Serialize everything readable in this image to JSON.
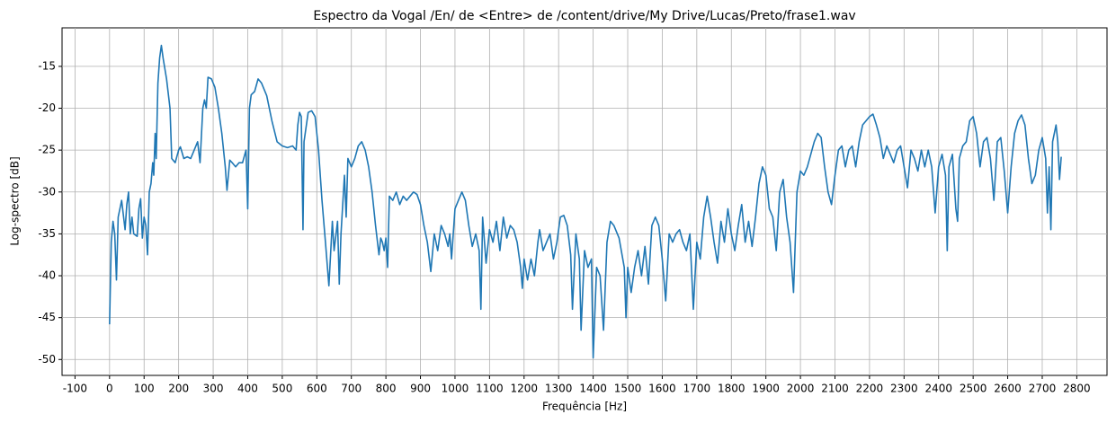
{
  "chart_data": {
    "type": "line",
    "title": "Espectro da Vogal /En/ de <Entre> de /content/drive/My Drive/Lucas/Preto/frase1.wav",
    "x_label": "Frequência [Hz]",
    "y_label": "Log-spectro [dB]",
    "color": "#1f77b4",
    "grid": true,
    "xlim": [
      -137.5,
      2887.5
    ],
    "ylim": [
      -51.9,
      -10.4
    ],
    "xticks": [
      -100,
      0,
      100,
      200,
      300,
      400,
      500,
      600,
      700,
      800,
      900,
      1000,
      1100,
      1200,
      1300,
      1400,
      1500,
      1600,
      1700,
      1800,
      1900,
      2000,
      2100,
      2200,
      2300,
      2400,
      2500,
      2600,
      2700,
      2800
    ],
    "yticks": [
      -50,
      -45,
      -40,
      -35,
      -30,
      -25,
      -20,
      -15
    ],
    "x": [
      0,
      5,
      10,
      15,
      20,
      25,
      35,
      45,
      50,
      55,
      60,
      65,
      70,
      80,
      85,
      90,
      95,
      100,
      105,
      110,
      115,
      120,
      125,
      128,
      132,
      135,
      140,
      145,
      150,
      155,
      165,
      175,
      180,
      190,
      200,
      205,
      215,
      225,
      235,
      245,
      255,
      262,
      270,
      275,
      280,
      285,
      295,
      305,
      315,
      325,
      335,
      340,
      348,
      355,
      365,
      375,
      385,
      395,
      400,
      405,
      410,
      420,
      430,
      440,
      455,
      470,
      485,
      500,
      515,
      530,
      540,
      545,
      550,
      555,
      560,
      563,
      575,
      585,
      595,
      605,
      615,
      625,
      635,
      645,
      650,
      660,
      665,
      670,
      680,
      685,
      690,
      700,
      710,
      720,
      730,
      740,
      750,
      760,
      770,
      780,
      785,
      790,
      795,
      800,
      805,
      810,
      820,
      830,
      840,
      850,
      860,
      870,
      880,
      890,
      900,
      910,
      920,
      930,
      940,
      950,
      960,
      970,
      980,
      985,
      990,
      1000,
      1010,
      1020,
      1030,
      1040,
      1050,
      1060,
      1070,
      1075,
      1080,
      1090,
      1100,
      1110,
      1120,
      1130,
      1140,
      1150,
      1160,
      1170,
      1180,
      1190,
      1195,
      1200,
      1210,
      1220,
      1230,
      1240,
      1245,
      1255,
      1265,
      1275,
      1285,
      1295,
      1305,
      1315,
      1325,
      1335,
      1340,
      1350,
      1360,
      1365,
      1375,
      1385,
      1395,
      1400,
      1410,
      1420,
      1430,
      1440,
      1450,
      1460,
      1475,
      1490,
      1495,
      1500,
      1510,
      1520,
      1530,
      1540,
      1550,
      1560,
      1570,
      1580,
      1590,
      1600,
      1610,
      1620,
      1630,
      1640,
      1650,
      1660,
      1670,
      1680,
      1690,
      1700,
      1710,
      1720,
      1730,
      1740,
      1750,
      1760,
      1770,
      1780,
      1790,
      1800,
      1810,
      1820,
      1830,
      1840,
      1850,
      1860,
      1870,
      1880,
      1890,
      1900,
      1910,
      1920,
      1930,
      1940,
      1950,
      1960,
      1970,
      1980,
      1990,
      2000,
      2010,
      2020,
      2030,
      2040,
      2050,
      2060,
      2070,
      2080,
      2090,
      2100,
      2110,
      2120,
      2130,
      2140,
      2150,
      2160,
      2170,
      2180,
      2190,
      2200,
      2210,
      2220,
      2230,
      2240,
      2250,
      2260,
      2270,
      2280,
      2290,
      2300,
      2310,
      2320,
      2330,
      2340,
      2350,
      2360,
      2370,
      2380,
      2390,
      2400,
      2410,
      2420,
      2425,
      2430,
      2440,
      2450,
      2455,
      2460,
      2470,
      2480,
      2490,
      2500,
      2510,
      2520,
      2530,
      2540,
      2550,
      2560,
      2570,
      2580,
      2590,
      2600,
      2610,
      2620,
      2630,
      2640,
      2650,
      2660,
      2670,
      2680,
      2690,
      2700,
      2710,
      2715,
      2720,
      2725,
      2730,
      2740,
      2745,
      2750,
      2755
    ],
    "values": [
      -45.8,
      -36,
      -33.5,
      -35,
      -40.5,
      -33,
      -31,
      -34.5,
      -31.5,
      -30,
      -35,
      -33,
      -35,
      -35.3,
      -32,
      -30.8,
      -35.5,
      -33,
      -34,
      -37.5,
      -30,
      -29,
      -26.5,
      -28,
      -23,
      -26,
      -17,
      -14,
      -12.5,
      -14,
      -16.5,
      -20,
      -26,
      -26.5,
      -25,
      -24.6,
      -26,
      -25.8,
      -26,
      -25,
      -24,
      -26.5,
      -20,
      -19,
      -20,
      -16.3,
      -16.5,
      -17.5,
      -20,
      -23,
      -27,
      -29.8,
      -26.2,
      -26.5,
      -27,
      -26.5,
      -26.5,
      -25,
      -32,
      -20,
      -18.4,
      -18,
      -16.5,
      -17,
      -18.5,
      -21.5,
      -24,
      -24.5,
      -24.7,
      -24.5,
      -25,
      -22,
      -20.5,
      -21,
      -34.5,
      -24,
      -20.5,
      -20.3,
      -21,
      -25,
      -31,
      -36,
      -41.2,
      -33.5,
      -37,
      -33.5,
      -41,
      -35,
      -28,
      -33,
      -26,
      -27,
      -26,
      -24.5,
      -24,
      -25,
      -27,
      -30,
      -34,
      -37.5,
      -35.5,
      -36,
      -37,
      -35.5,
      -39,
      -30.5,
      -31,
      -30,
      -31.5,
      -30.5,
      -31,
      -30.5,
      -30,
      -30.3,
      -31.5,
      -34,
      -36,
      -39.5,
      -35,
      -37,
      -34,
      -35,
      -36.5,
      -35,
      -38,
      -32,
      -31,
      -30,
      -31,
      -34,
      -36.5,
      -35,
      -37,
      -44,
      -33,
      -38.5,
      -34.5,
      -36,
      -33.5,
      -37,
      -33,
      -35.5,
      -34,
      -34.5,
      -36,
      -39,
      -41.5,
      -38,
      -40.5,
      -38,
      -40,
      -36,
      -34.5,
      -37,
      -36,
      -35,
      -38,
      -36,
      -33,
      -32.8,
      -34,
      -37.5,
      -44,
      -35,
      -38,
      -46.5,
      -37,
      -39,
      -38,
      -49.8,
      -39,
      -40,
      -46.5,
      -36,
      -33.5,
      -34,
      -35.5,
      -39,
      -45,
      -39,
      -42,
      -39,
      -37,
      -40,
      -36.5,
      -41,
      -34,
      -33,
      -34,
      -38,
      -43,
      -35,
      -36,
      -35,
      -34.5,
      -36,
      -37,
      -35,
      -44,
      -36,
      -38,
      -33,
      -30.5,
      -33,
      -36,
      -38.5,
      -33.5,
      -36,
      -32,
      -35,
      -37,
      -34,
      -31.5,
      -36,
      -33.5,
      -36.5,
      -33,
      -29,
      -27,
      -28,
      -32,
      -33,
      -37,
      -30,
      -28.5,
      -33,
      -36,
      -42,
      -30,
      -27.5,
      -28,
      -27,
      -25.5,
      -24,
      -23,
      -23.5,
      -27,
      -30,
      -31.5,
      -28,
      -25,
      -24.5,
      -27,
      -25,
      -24.5,
      -27,
      -24,
      -22,
      -21.5,
      -21,
      -20.7,
      -22,
      -23.5,
      -26,
      -24.5,
      -25.5,
      -26.5,
      -25,
      -24.5,
      -27,
      -29.5,
      -25,
      -26,
      -27.5,
      -25,
      -27,
      -25,
      -27,
      -32.5,
      -27,
      -25.5,
      -28,
      -37,
      -27,
      -25.5,
      -32,
      -33.5,
      -26,
      -24.5,
      -24,
      -21.5,
      -21,
      -23,
      -27,
      -24,
      -23.5,
      -26,
      -31,
      -24,
      -23.5,
      -27.5,
      -32.5,
      -27,
      -23,
      -21.5,
      -20.8,
      -22,
      -26,
      -29,
      -28,
      -25,
      -23.5,
      -26,
      -32.5,
      -27,
      -34.5,
      -24,
      -22,
      -24,
      -28.5,
      -25.8
    ]
  }
}
